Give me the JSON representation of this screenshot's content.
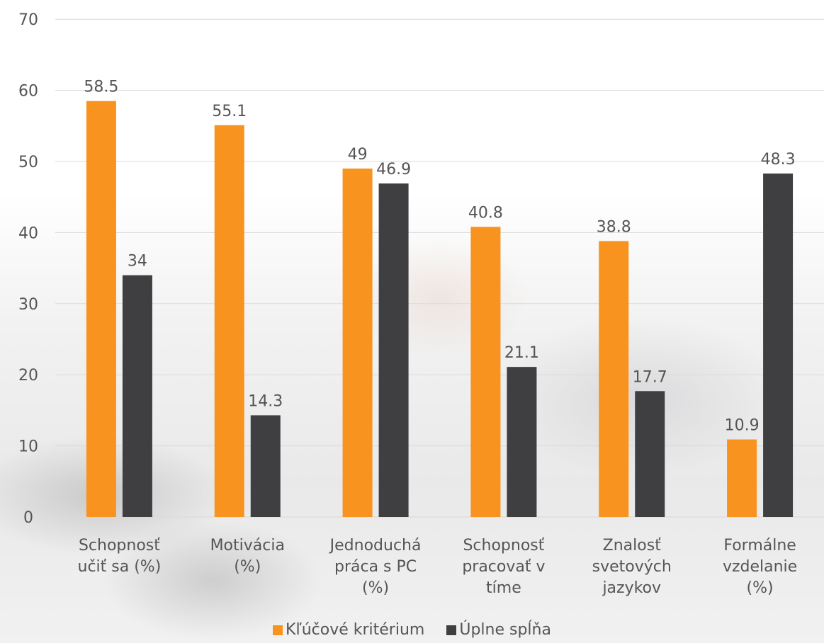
{
  "chart_data": {
    "type": "bar",
    "categories": [
      [
        "Schopnosť",
        "učiť sa (%)"
      ],
      [
        "Motivácia",
        "(%)"
      ],
      [
        "Jednoduchá",
        "práca s PC",
        "(%)"
      ],
      [
        "Schopnosť",
        "pracovať v",
        "tíme"
      ],
      [
        "Znalosť",
        "svetových",
        "jazykov"
      ],
      [
        "Formálne",
        "vzdelanie",
        "(%)"
      ]
    ],
    "series": [
      {
        "name": "Kľúčové kritérium",
        "color": "#f7931e",
        "values": [
          58.5,
          55.1,
          49,
          40.8,
          38.8,
          10.9
        ],
        "labels": [
          "58.5",
          "55.1",
          "49",
          "40.8",
          "38.8",
          "10.9"
        ]
      },
      {
        "name": "Úplne spĺňa",
        "color": "#3f3f41",
        "values": [
          34,
          14.3,
          46.9,
          21.1,
          17.7,
          48.3
        ],
        "labels": [
          "34",
          "14.3",
          "46.9",
          "21.1",
          "17.7",
          "48.3"
        ]
      }
    ],
    "yticks": [
      "0",
      "10",
      "20",
      "30",
      "40",
      "50",
      "60",
      "70"
    ],
    "ylim": [
      0,
      70
    ],
    "grid": true,
    "legend": "bottom",
    "gridColor": "#d9d9d9"
  }
}
